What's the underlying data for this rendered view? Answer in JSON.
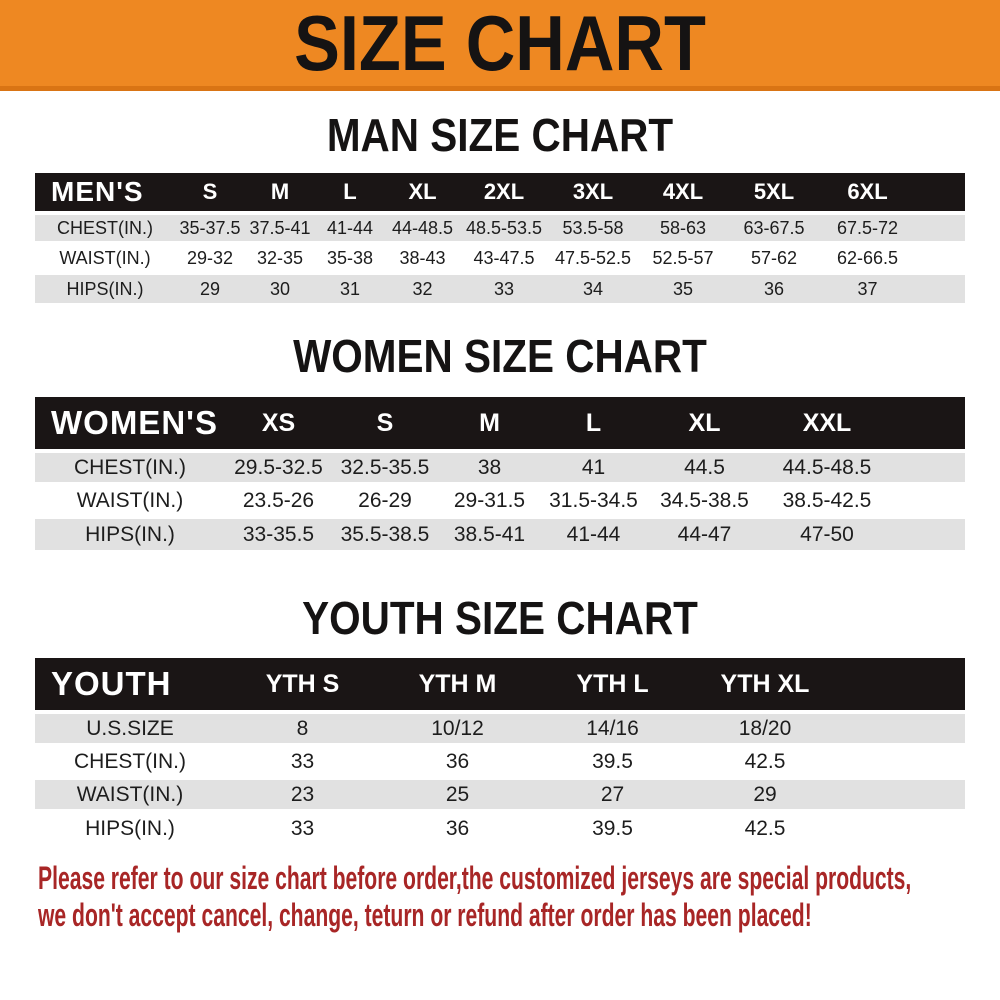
{
  "banner": {
    "title": "SIZE CHART"
  },
  "colors": {
    "banner_orange": "#ee8822",
    "banner_edge": "#d97414",
    "table_header_black": "#1a1515",
    "row_gray": "#e1e1e1",
    "footer_red": "#a82626"
  },
  "sections": [
    {
      "heading": "MAN SIZE CHART",
      "table": {
        "header": [
          "MEN'S",
          "S",
          "M",
          "L",
          "XL",
          "2XL",
          "3XL",
          "4XL",
          "5XL",
          "6XL"
        ],
        "rows": [
          {
            "label": "CHEST(IN.)",
            "values": [
              "35-37.5",
              "37.5-41",
              "41-44",
              "44-48.5",
              "48.5-53.5",
              "53.5-58",
              "58-63",
              "63-67.5",
              "67.5-72"
            ]
          },
          {
            "label": "WAIST(IN.)",
            "values": [
              "29-32",
              "32-35",
              "35-38",
              "38-43",
              "43-47.5",
              "47.5-52.5",
              "52.5-57",
              "57-62",
              "62-66.5"
            ]
          },
          {
            "label": "HIPS(IN.)",
            "values": [
              "29",
              "30",
              "31",
              "32",
              "33",
              "34",
              "35",
              "36",
              "37"
            ]
          }
        ]
      }
    },
    {
      "heading": "WOMEN SIZE CHART",
      "table": {
        "header": [
          "WOMEN'S",
          "XS",
          "S",
          "M",
          "L",
          "XL",
          "XXL"
        ],
        "rows": [
          {
            "label": "CHEST(IN.)",
            "values": [
              "29.5-32.5",
              "32.5-35.5",
              "38",
              "41",
              "44.5",
              "44.5-48.5"
            ]
          },
          {
            "label": "WAIST(IN.)",
            "values": [
              "23.5-26",
              "26-29",
              "29-31.5",
              "31.5-34.5",
              "34.5-38.5",
              "38.5-42.5"
            ]
          },
          {
            "label": "HIPS(IN.)",
            "values": [
              "33-35.5",
              "35.5-38.5",
              "38.5-41",
              "41-44",
              "44-47",
              "47-50"
            ]
          }
        ]
      }
    },
    {
      "heading": "YOUTH SIZE CHART",
      "table": {
        "header": [
          "YOUTH",
          "YTH S",
          "YTH M",
          "YTH L",
          "YTH XL"
        ],
        "rows": [
          {
            "label": "U.S.SIZE",
            "values": [
              "8",
              "10/12",
              "14/16",
              "18/20"
            ]
          },
          {
            "label": "CHEST(IN.)",
            "values": [
              "33",
              "36",
              "39.5",
              "42.5"
            ]
          },
          {
            "label": "WAIST(IN.)",
            "values": [
              "23",
              "25",
              "27",
              "29"
            ]
          },
          {
            "label": "HIPS(IN.)",
            "values": [
              "33",
              "36",
              "39.5",
              "42.5"
            ]
          }
        ]
      }
    }
  ],
  "footer": {
    "line1": "Please refer to our size chart before order,the customized jerseys are special products,",
    "line2": "we don't accept cancel, change, teturn or refund after order has been placed!"
  }
}
